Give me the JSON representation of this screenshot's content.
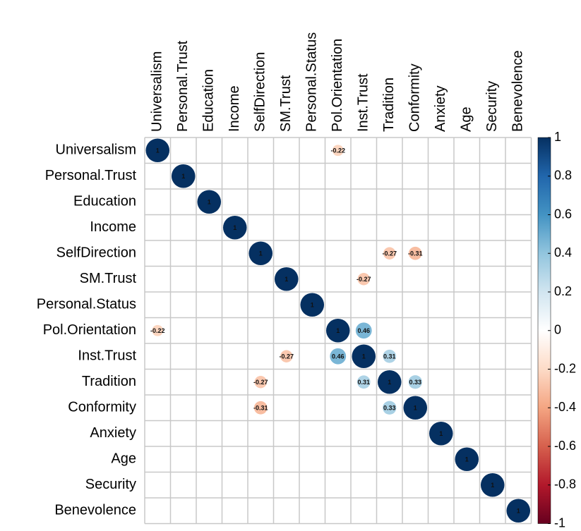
{
  "chart_data": {
    "type": "corrplot",
    "variables": [
      "Universalism",
      "Personal.Trust",
      "Education",
      "Income",
      "SelfDirection",
      "SM.Trust",
      "Personal.Status",
      "Pol.Orientation",
      "Inst.Trust",
      "Tradition",
      "Conformity",
      "Anxiety",
      "Age",
      "Security",
      "Benevolence"
    ],
    "matrix": [
      [
        1,
        null,
        null,
        null,
        null,
        null,
        null,
        -0.22,
        null,
        null,
        null,
        null,
        null,
        null,
        null
      ],
      [
        null,
        1,
        null,
        null,
        null,
        null,
        null,
        null,
        null,
        null,
        null,
        null,
        null,
        null,
        null
      ],
      [
        null,
        null,
        1,
        null,
        null,
        null,
        null,
        null,
        null,
        null,
        null,
        null,
        null,
        null,
        null
      ],
      [
        null,
        null,
        null,
        1,
        null,
        null,
        null,
        null,
        null,
        null,
        null,
        null,
        null,
        null,
        null
      ],
      [
        null,
        null,
        null,
        null,
        1,
        null,
        null,
        null,
        null,
        -0.27,
        -0.31,
        null,
        null,
        null,
        null
      ],
      [
        null,
        null,
        null,
        null,
        null,
        1,
        null,
        null,
        -0.27,
        null,
        null,
        null,
        null,
        null,
        null
      ],
      [
        null,
        null,
        null,
        null,
        null,
        null,
        1,
        null,
        null,
        null,
        null,
        null,
        null,
        null,
        null
      ],
      [
        -0.22,
        null,
        null,
        null,
        null,
        null,
        null,
        1,
        0.46,
        null,
        null,
        null,
        null,
        null,
        null
      ],
      [
        null,
        null,
        null,
        null,
        null,
        -0.27,
        null,
        0.46,
        1,
        0.31,
        null,
        null,
        null,
        null,
        null
      ],
      [
        null,
        null,
        null,
        null,
        -0.27,
        null,
        null,
        null,
        0.31,
        1,
        0.33,
        null,
        null,
        null,
        null
      ],
      [
        null,
        null,
        null,
        null,
        -0.31,
        null,
        null,
        null,
        null,
        0.33,
        1,
        null,
        null,
        null,
        null
      ],
      [
        null,
        null,
        null,
        null,
        null,
        null,
        null,
        null,
        null,
        null,
        null,
        1,
        null,
        null,
        null
      ],
      [
        null,
        null,
        null,
        null,
        null,
        null,
        null,
        null,
        null,
        null,
        null,
        null,
        1,
        null,
        null
      ],
      [
        null,
        null,
        null,
        null,
        null,
        null,
        null,
        null,
        null,
        null,
        null,
        null,
        null,
        1,
        null
      ],
      [
        null,
        null,
        null,
        null,
        null,
        null,
        null,
        null,
        null,
        null,
        null,
        null,
        null,
        null,
        1
      ]
    ],
    "colors": [
      "#67001F",
      "#B2182B",
      "#D6604D",
      "#F4A582",
      "#FDDBC7",
      "#FFFFFF",
      "#D1E5F0",
      "#92C5DE",
      "#4393C3",
      "#2166AC",
      "#053061"
    ],
    "zlim": [
      -1,
      1
    ],
    "zticks": [
      1,
      0.8,
      0.6,
      0.4,
      0.2,
      0,
      -0.2,
      -0.4,
      -0.6,
      -0.8,
      -1
    ]
  }
}
